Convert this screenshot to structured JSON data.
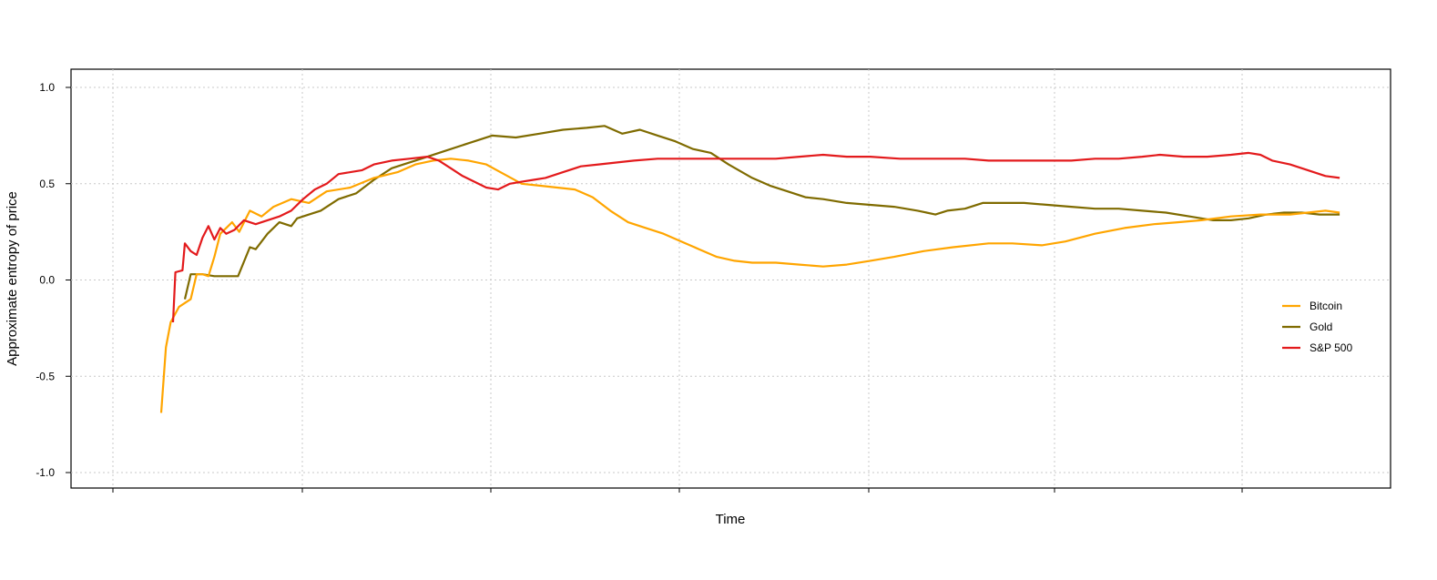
{
  "chart_data": {
    "type": "line",
    "title": "",
    "xlabel": "Time",
    "ylabel": "Approximate entropy of price",
    "ylim": [
      -1.0,
      1.0
    ],
    "xlim": [
      0,
      1000
    ],
    "yticks": [
      "-1.0",
      "-0.5",
      "0.0",
      "0.5",
      "1.0"
    ],
    "grid": true,
    "legend_position": "right",
    "series": [
      {
        "name": "Bitcoin",
        "color": "#FFA500",
        "points": [
          [
            0,
            -0.69
          ],
          [
            4,
            -0.35
          ],
          [
            8,
            -0.22
          ],
          [
            15,
            -0.14
          ],
          [
            25,
            -0.1
          ],
          [
            30,
            0.03
          ],
          [
            35,
            0.03
          ],
          [
            40,
            0.02
          ],
          [
            45,
            0.12
          ],
          [
            50,
            0.24
          ],
          [
            55,
            0.27
          ],
          [
            60,
            0.3
          ],
          [
            66,
            0.25
          ],
          [
            75,
            0.36
          ],
          [
            85,
            0.33
          ],
          [
            95,
            0.38
          ],
          [
            110,
            0.42
          ],
          [
            125,
            0.4
          ],
          [
            140,
            0.46
          ],
          [
            160,
            0.48
          ],
          [
            180,
            0.53
          ],
          [
            200,
            0.56
          ],
          [
            215,
            0.6
          ],
          [
            230,
            0.62
          ],
          [
            245,
            0.63
          ],
          [
            260,
            0.62
          ],
          [
            275,
            0.6
          ],
          [
            290,
            0.55
          ],
          [
            305,
            0.5
          ],
          [
            320,
            0.49
          ],
          [
            335,
            0.48
          ],
          [
            350,
            0.47
          ],
          [
            365,
            0.43
          ],
          [
            380,
            0.36
          ],
          [
            395,
            0.3
          ],
          [
            410,
            0.27
          ],
          [
            425,
            0.24
          ],
          [
            440,
            0.2
          ],
          [
            455,
            0.16
          ],
          [
            470,
            0.12
          ],
          [
            485,
            0.1
          ],
          [
            500,
            0.09
          ],
          [
            520,
            0.09
          ],
          [
            540,
            0.08
          ],
          [
            560,
            0.07
          ],
          [
            580,
            0.08
          ],
          [
            600,
            0.1
          ],
          [
            620,
            0.12
          ],
          [
            645,
            0.15
          ],
          [
            670,
            0.17
          ],
          [
            700,
            0.19
          ],
          [
            720,
            0.19
          ],
          [
            745,
            0.18
          ],
          [
            765,
            0.2
          ],
          [
            790,
            0.24
          ],
          [
            815,
            0.27
          ],
          [
            840,
            0.29
          ],
          [
            860,
            0.3
          ],
          [
            880,
            0.31
          ],
          [
            905,
            0.33
          ],
          [
            930,
            0.34
          ],
          [
            955,
            0.34
          ],
          [
            970,
            0.35
          ],
          [
            985,
            0.36
          ],
          [
            997,
            0.35
          ]
        ]
      },
      {
        "name": "Gold",
        "color": "#7F6B00",
        "points": [
          [
            20,
            -0.1
          ],
          [
            25,
            0.03
          ],
          [
            35,
            0.03
          ],
          [
            45,
            0.02
          ],
          [
            65,
            0.02
          ],
          [
            75,
            0.17
          ],
          [
            80,
            0.16
          ],
          [
            90,
            0.24
          ],
          [
            100,
            0.3
          ],
          [
            110,
            0.28
          ],
          [
            115,
            0.32
          ],
          [
            125,
            0.34
          ],
          [
            135,
            0.36
          ],
          [
            150,
            0.42
          ],
          [
            165,
            0.45
          ],
          [
            180,
            0.52
          ],
          [
            195,
            0.58
          ],
          [
            205,
            0.6
          ],
          [
            220,
            0.63
          ],
          [
            240,
            0.67
          ],
          [
            260,
            0.71
          ],
          [
            280,
            0.75
          ],
          [
            300,
            0.74
          ],
          [
            320,
            0.76
          ],
          [
            340,
            0.78
          ],
          [
            360,
            0.79
          ],
          [
            375,
            0.8
          ],
          [
            390,
            0.76
          ],
          [
            405,
            0.78
          ],
          [
            420,
            0.75
          ],
          [
            435,
            0.72
          ],
          [
            450,
            0.68
          ],
          [
            465,
            0.66
          ],
          [
            480,
            0.6
          ],
          [
            500,
            0.53
          ],
          [
            515,
            0.49
          ],
          [
            530,
            0.46
          ],
          [
            545,
            0.43
          ],
          [
            560,
            0.42
          ],
          [
            580,
            0.4
          ],
          [
            600,
            0.39
          ],
          [
            620,
            0.38
          ],
          [
            640,
            0.36
          ],
          [
            655,
            0.34
          ],
          [
            665,
            0.36
          ],
          [
            680,
            0.37
          ],
          [
            695,
            0.4
          ],
          [
            710,
            0.4
          ],
          [
            730,
            0.4
          ],
          [
            750,
            0.39
          ],
          [
            770,
            0.38
          ],
          [
            790,
            0.37
          ],
          [
            810,
            0.37
          ],
          [
            830,
            0.36
          ],
          [
            850,
            0.35
          ],
          [
            870,
            0.33
          ],
          [
            890,
            0.31
          ],
          [
            905,
            0.31
          ],
          [
            920,
            0.32
          ],
          [
            935,
            0.34
          ],
          [
            950,
            0.35
          ],
          [
            965,
            0.35
          ],
          [
            980,
            0.34
          ],
          [
            997,
            0.34
          ]
        ]
      },
      {
        "name": "S&P 500",
        "color": "#E31A1C",
        "points": [
          [
            10,
            -0.22
          ],
          [
            12,
            0.04
          ],
          [
            18,
            0.05
          ],
          [
            20,
            0.19
          ],
          [
            25,
            0.15
          ],
          [
            30,
            0.13
          ],
          [
            35,
            0.22
          ],
          [
            40,
            0.28
          ],
          [
            45,
            0.21
          ],
          [
            50,
            0.27
          ],
          [
            55,
            0.24
          ],
          [
            62,
            0.26
          ],
          [
            70,
            0.31
          ],
          [
            80,
            0.29
          ],
          [
            90,
            0.31
          ],
          [
            100,
            0.33
          ],
          [
            110,
            0.36
          ],
          [
            120,
            0.42
          ],
          [
            130,
            0.47
          ],
          [
            140,
            0.5
          ],
          [
            150,
            0.55
          ],
          [
            160,
            0.56
          ],
          [
            170,
            0.57
          ],
          [
            180,
            0.6
          ],
          [
            195,
            0.62
          ],
          [
            210,
            0.63
          ],
          [
            225,
            0.64
          ],
          [
            235,
            0.62
          ],
          [
            245,
            0.58
          ],
          [
            255,
            0.54
          ],
          [
            265,
            0.51
          ],
          [
            275,
            0.48
          ],
          [
            285,
            0.47
          ],
          [
            295,
            0.5
          ],
          [
            305,
            0.51
          ],
          [
            315,
            0.52
          ],
          [
            325,
            0.53
          ],
          [
            340,
            0.56
          ],
          [
            355,
            0.59
          ],
          [
            370,
            0.6
          ],
          [
            385,
            0.61
          ],
          [
            400,
            0.62
          ],
          [
            420,
            0.63
          ],
          [
            440,
            0.63
          ],
          [
            460,
            0.63
          ],
          [
            480,
            0.63
          ],
          [
            500,
            0.63
          ],
          [
            520,
            0.63
          ],
          [
            540,
            0.64
          ],
          [
            560,
            0.65
          ],
          [
            580,
            0.64
          ],
          [
            600,
            0.64
          ],
          [
            625,
            0.63
          ],
          [
            650,
            0.63
          ],
          [
            680,
            0.63
          ],
          [
            700,
            0.62
          ],
          [
            720,
            0.62
          ],
          [
            745,
            0.62
          ],
          [
            770,
            0.62
          ],
          [
            790,
            0.63
          ],
          [
            810,
            0.63
          ],
          [
            830,
            0.64
          ],
          [
            845,
            0.65
          ],
          [
            865,
            0.64
          ],
          [
            885,
            0.64
          ],
          [
            905,
            0.65
          ],
          [
            920,
            0.66
          ],
          [
            930,
            0.65
          ],
          [
            940,
            0.62
          ],
          [
            955,
            0.6
          ],
          [
            970,
            0.57
          ],
          [
            985,
            0.54
          ],
          [
            997,
            0.53
          ]
        ]
      }
    ]
  }
}
